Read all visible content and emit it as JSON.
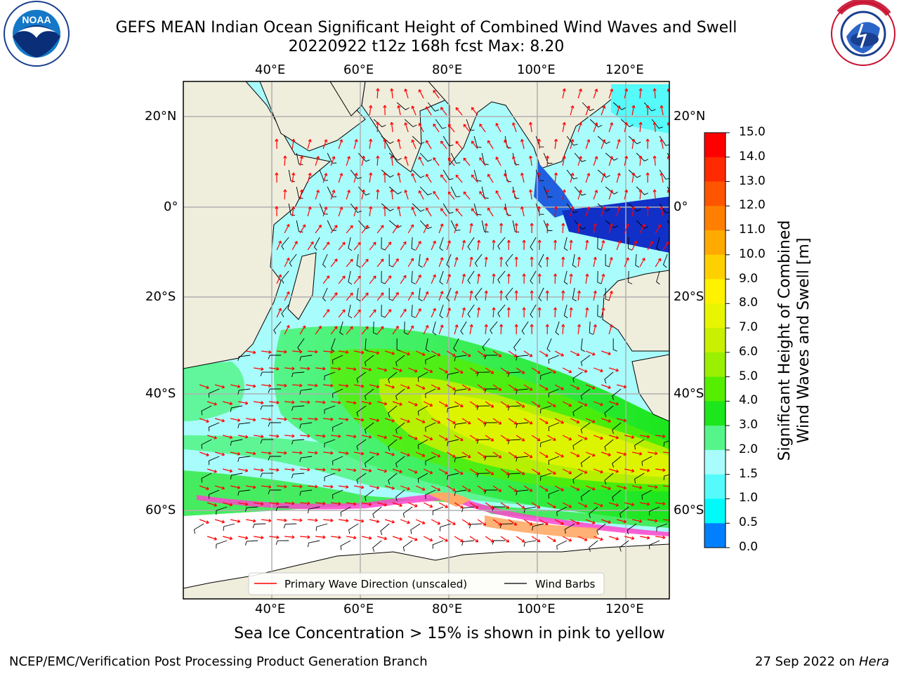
{
  "header": {
    "title_line1": "GEFS MEAN Indian Ocean Significant Height of Combined Wind Waves and Swell",
    "title_line2": "20220922 t12z 168h fcst   Max: 8.20"
  },
  "logos": {
    "left": {
      "name": "noaa-logo",
      "text": "NOAA"
    },
    "right": {
      "name": "nws-logo",
      "text": "NATIONAL WEATHER SERVICE"
    }
  },
  "map": {
    "lon_labels": [
      "40°E",
      "60°E",
      "80°E",
      "100°E",
      "120°E"
    ],
    "lat_labels": [
      "20°N",
      "0°",
      "20°S",
      "40°S",
      "60°S"
    ],
    "legend": {
      "wave_direction": "Primary Wave Direction (unscaled)",
      "wind_barbs": "Wind Barbs"
    },
    "colors": {
      "land": "#efeddc",
      "ocean_low": "#a8fcfc",
      "wave_arrow": "#ff0000",
      "wind_barb": "#000000",
      "sea_ice": "#ff44cc"
    }
  },
  "colorbar": {
    "label_line1": "Significant Height of Combined",
    "label_line2": "Wind Waves and Swell [m]",
    "ticks": [
      "15.0",
      "14.0",
      "13.0",
      "12.0",
      "11.0",
      "10.0",
      "9.0",
      "8.0",
      "7.0",
      "6.0",
      "5.0",
      "4.0",
      "3.0",
      "2.0",
      "1.5",
      "1.0",
      "0.5",
      "0.0"
    ],
    "colors": [
      "#ff0000",
      "#ff2a00",
      "#ff5500",
      "#ff8000",
      "#ffaa00",
      "#ffd000",
      "#fff200",
      "#e7f500",
      "#c8f000",
      "#9af000",
      "#55ee00",
      "#1ce61c",
      "#55f58a",
      "#a8fcfc",
      "#55fafa",
      "#00fafa",
      "#0080ff",
      "#0000ff"
    ]
  },
  "caption": "Sea Ice Concentration > 15% is shown in pink to yellow",
  "footer": {
    "left": "NCEP/EMC/Verification Post Processing Product Generation Branch",
    "right_prefix": "27 Sep 2022 on ",
    "right_italic": "Hera"
  }
}
